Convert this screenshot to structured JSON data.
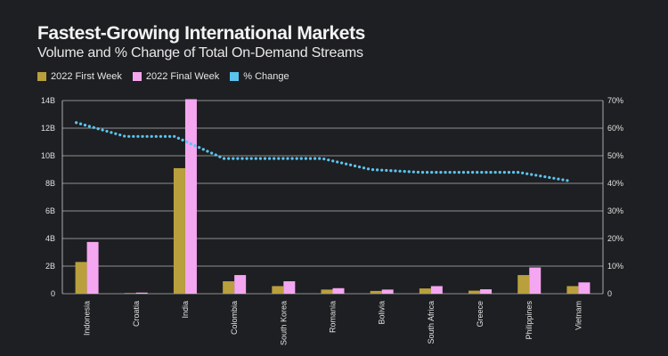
{
  "title": "Fastest-Growing International Markets",
  "subtitle": "Volume and % Change of Total On-Demand Streams",
  "colors": {
    "background": "#1e1f22",
    "first_week": "#b9a03c",
    "final_week": "#f5a6f0",
    "pct_change": "#5bc4ee",
    "grid": "#cfcfcf"
  },
  "chart_data": {
    "type": "bar",
    "categories": [
      "Indonesia",
      "Croatia",
      "India",
      "Colombia",
      "South Korea",
      "Romania",
      "Bolivia",
      "South Africa",
      "Greece",
      "Philippines",
      "Vietnam"
    ],
    "series": [
      {
        "name": "2022 First Week",
        "type": "bar",
        "axis": "left",
        "values": [
          2.3,
          0.05,
          9.1,
          0.9,
          0.55,
          0.3,
          0.2,
          0.38,
          0.22,
          1.35,
          0.55
        ]
      },
      {
        "name": "2022 Final Week",
        "type": "bar",
        "axis": "left",
        "values": [
          3.75,
          0.08,
          14.1,
          1.35,
          0.9,
          0.4,
          0.3,
          0.55,
          0.32,
          1.9,
          0.82
        ]
      },
      {
        "name": "% Change",
        "type": "line",
        "style": "dotted",
        "axis": "right",
        "values": [
          62,
          57,
          57,
          49,
          49,
          49,
          45,
          44,
          44,
          44,
          41
        ]
      }
    ],
    "y_left": {
      "ticks": [
        "0",
        "2B",
        "4B",
        "6B",
        "8B",
        "10B",
        "12B",
        "14B"
      ],
      "ylim": [
        0,
        14
      ]
    },
    "y_right": {
      "ticks": [
        "0",
        "10%",
        "20%",
        "30%",
        "40%",
        "50%",
        "60%",
        "70%"
      ],
      "ylim": [
        0,
        70
      ]
    },
    "grid": true,
    "legend": "top-left"
  }
}
